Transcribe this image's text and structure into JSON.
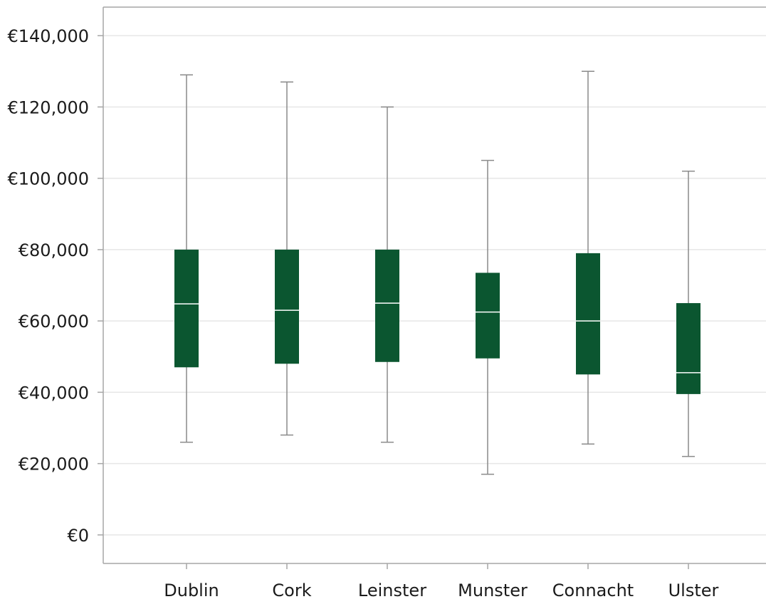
{
  "chart_data": {
    "type": "box",
    "categories": [
      "Dublin",
      "Cork",
      "Leinster",
      "Munster",
      "Connacht",
      "Ulster"
    ],
    "boxes": [
      {
        "min": 26000,
        "q1": 47000,
        "median": 64800,
        "q3": 80000,
        "max": 129000
      },
      {
        "min": 28000,
        "q1": 48000,
        "median": 63000,
        "q3": 80000,
        "max": 127000
      },
      {
        "min": 26000,
        "q1": 48500,
        "median": 65000,
        "q3": 80000,
        "max": 120000
      },
      {
        "min": 17000,
        "q1": 49500,
        "median": 62500,
        "q3": 73500,
        "max": 105000
      },
      {
        "min": 25500,
        "q1": 45000,
        "median": 60000,
        "q3": 79000,
        "max": 130000
      },
      {
        "min": 22000,
        "q1": 39500,
        "median": 45500,
        "q3": 65000,
        "max": 102000
      }
    ],
    "yticks": [
      {
        "value": 0,
        "label": "€0"
      },
      {
        "value": 20000,
        "label": "€20,000"
      },
      {
        "value": 40000,
        "label": "€40,000"
      },
      {
        "value": 60000,
        "label": "€60,000"
      },
      {
        "value": 80000,
        "label": "€80,000"
      },
      {
        "value": 100000,
        "label": "€100,000"
      },
      {
        "value": 120000,
        "label": "€120,000"
      },
      {
        "value": 140000,
        "label": "€140,000"
      }
    ],
    "ylim": [
      -8000,
      148000
    ],
    "grid": true,
    "legend": "none",
    "box_color": "#0b5630",
    "median_color": "#ffffff",
    "whisker_color": "#8a8a8a",
    "grid_color": "#e6e6e6",
    "axis_color": "#a6a6a6"
  }
}
